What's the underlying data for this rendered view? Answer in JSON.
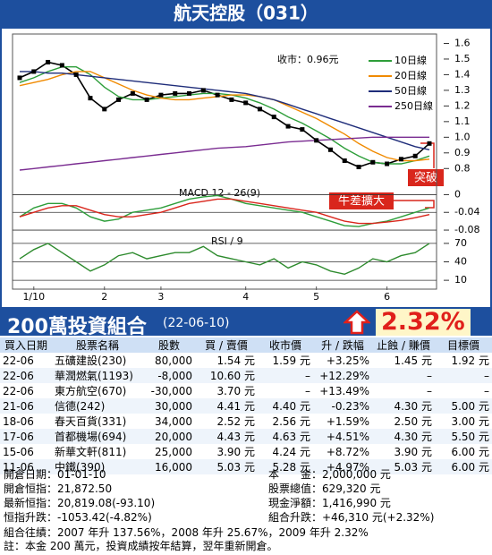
{
  "header": {
    "title": "航天控股（031）"
  },
  "chart_data": [
    {
      "type": "line",
      "categories": [
        null,
        "1/10",
        null,
        null,
        null,
        null,
        "2",
        null,
        null,
        null,
        "3",
        null,
        null,
        null,
        null,
        null,
        "4",
        null,
        null,
        null,
        null,
        "5",
        null,
        null,
        null,
        null,
        "6",
        null,
        null,
        null
      ],
      "values": [
        1.38,
        1.42,
        1.48,
        1.46,
        1.4,
        1.25,
        1.18,
        1.24,
        1.28,
        1.24,
        1.27,
        1.28,
        1.28,
        1.3,
        1.27,
        1.24,
        1.22,
        1.18,
        1.13,
        1.07,
        1.05,
        0.98,
        0.92,
        0.85,
        0.81,
        0.84,
        0.83,
        0.86,
        0.88,
        0.96
      ],
      "color": "#000000",
      "series": [
        {
          "name": "10日線",
          "color": "#2e9e3a",
          "values": [
            1.35,
            1.38,
            1.42,
            1.45,
            1.45,
            1.4,
            1.32,
            1.26,
            1.24,
            1.24,
            1.25,
            1.26,
            1.27,
            1.28,
            1.28,
            1.27,
            1.25,
            1.22,
            1.18,
            1.13,
            1.09,
            1.04,
            0.99,
            0.93,
            0.88,
            0.84,
            0.83,
            0.83,
            0.85,
            0.88
          ]
        },
        {
          "name": "20日線",
          "color": "#f08a00",
          "values": [
            1.33,
            1.35,
            1.37,
            1.4,
            1.42,
            1.42,
            1.38,
            1.34,
            1.3,
            1.27,
            1.25,
            1.24,
            1.24,
            1.25,
            1.26,
            1.27,
            1.27,
            1.26,
            1.24,
            1.2,
            1.16,
            1.12,
            1.07,
            1.02,
            0.96,
            0.91,
            0.87,
            0.85,
            0.85,
            0.86
          ]
        },
        {
          "name": "50日線",
          "color": "#1f2d7a",
          "values": [
            1.42,
            1.42,
            1.41,
            1.41,
            1.4,
            1.39,
            1.38,
            1.37,
            1.36,
            1.35,
            1.34,
            1.33,
            1.32,
            1.31,
            1.3,
            1.29,
            1.28,
            1.26,
            1.24,
            1.21,
            1.18,
            1.15,
            1.12,
            1.09,
            1.06,
            1.03,
            1.0,
            0.97,
            0.94,
            0.92
          ]
        },
        {
          "name": "250日線",
          "color": "#7a2c91",
          "values": [
            0.79,
            0.8,
            0.81,
            0.82,
            0.83,
            0.84,
            0.85,
            0.86,
            0.87,
            0.88,
            0.89,
            0.9,
            0.91,
            0.92,
            0.93,
            0.935,
            0.94,
            0.95,
            0.96,
            0.97,
            0.975,
            0.98,
            0.985,
            0.99,
            0.995,
            1.0,
            1.0,
            1.0,
            1.0,
            1.0
          ]
        }
      ],
      "ylim": [
        0.75,
        1.62
      ],
      "yticks": [
        1.6,
        1.5,
        1.4,
        1.3,
        1.2,
        1.1,
        {
          "value": 1,
          "label": "1.0"
        },
        0.9,
        0.8
      ],
      "grid": false,
      "legend": "top-right",
      "annotations": {
        "close": "收市：0.96元",
        "signal": "突破"
      }
    },
    {
      "type": "line",
      "title": "MACD 12 - 26(9)",
      "series": [
        {
          "color": "#2e9e3a",
          "values": [
            -0.05,
            -0.03,
            -0.02,
            -0.02,
            -0.03,
            -0.05,
            -0.06,
            -0.055,
            -0.04,
            -0.035,
            -0.03,
            -0.02,
            -0.01,
            -0.005,
            -0.002,
            -0.01,
            -0.02,
            -0.025,
            -0.03,
            -0.035,
            -0.04,
            -0.05,
            -0.06,
            -0.07,
            -0.072,
            -0.065,
            -0.06,
            -0.05,
            -0.04,
            -0.03
          ]
        },
        {
          "color": "#d9261c",
          "values": [
            -0.05,
            -0.04,
            -0.03,
            -0.025,
            -0.025,
            -0.035,
            -0.045,
            -0.05,
            -0.05,
            -0.045,
            -0.04,
            -0.03,
            -0.02,
            -0.015,
            -0.01,
            -0.01,
            -0.015,
            -0.02,
            -0.025,
            -0.03,
            -0.035,
            -0.04,
            -0.05,
            -0.06,
            -0.065,
            -0.065,
            -0.062,
            -0.058,
            -0.052,
            -0.045
          ]
        }
      ],
      "ylim": [
        -0.09,
        0.015
      ],
      "yticks": [
        0,
        -0.04,
        -0.08
      ],
      "grid": true,
      "annotations": {
        "signal": "牛差擴大"
      }
    },
    {
      "type": "line",
      "title": "RSI / 9",
      "series": [
        {
          "color": "#2e8b2e",
          "values": [
            45,
            60,
            70,
            55,
            40,
            25,
            35,
            50,
            55,
            45,
            50,
            55,
            55,
            65,
            50,
            45,
            40,
            35,
            45,
            30,
            40,
            35,
            25,
            20,
            30,
            45,
            40,
            50,
            55,
            70
          ]
        }
      ],
      "ylim": [
        0,
        80
      ],
      "yticks": [
        70,
        40,
        10
      ],
      "grid": true
    }
  ],
  "portfolio": {
    "title": "200萬投資組合",
    "date": "(22-06-10)",
    "change": "2.32%",
    "columns": [
      "買入日期",
      "股票名稱",
      "股數",
      "買 / 賣價",
      "收市價",
      "升 / 跌幅",
      "止蝕 / 賺價",
      "目標價"
    ],
    "rows": [
      [
        "22-06",
        "五礦建設(230)",
        "80,000",
        "1.54 元",
        "1.59 元",
        "+3.25%",
        "1.45 元",
        "1.92 元"
      ],
      [
        "22-06",
        "華潤燃氣(1193)",
        "-8,000",
        "10.60 元",
        "–",
        "+12.29%",
        "–",
        "–"
      ],
      [
        "22-06",
        "東方航空(670)",
        "-30,000",
        "3.70 元",
        "–",
        "+13.49%",
        "–",
        "–"
      ],
      [
        "21-06",
        "信德(242)",
        "30,000",
        "4.41 元",
        "4.40 元",
        "-0.23%",
        "4.30 元",
        "5.00 元"
      ],
      [
        "18-06",
        "春天百貨(331)",
        "34,000",
        "2.52 元",
        "2.56 元",
        "+1.59%",
        "2.50 元",
        "3.00 元"
      ],
      [
        "17-06",
        "首都機場(694)",
        "20,000",
        "4.43 元",
        "4.63 元",
        "+4.51%",
        "4.30 元",
        "5.50 元"
      ],
      [
        "15-06",
        "新華文軒(811)",
        "25,000",
        "3.90 元",
        "4.24 元",
        "+8.72%",
        "3.90 元",
        "6.00 元"
      ],
      [
        "11-06",
        "中鐵(390)",
        "16,000",
        "5.03 元",
        "5.28 元",
        "+4.97%",
        "5.03 元",
        "6.00 元"
      ]
    ],
    "summary_left": [
      "開倉日期：01-01-10",
      "開倉恒指：21,872.50",
      "最新恒指：20,819.08(-93.10)",
      "恒指升跌：-1053.42(-4.82%)"
    ],
    "summary_right": [
      "本　　金：2,000,000 元",
      "股票總值：629,320 元",
      "現金淨額：1,416,990 元",
      "組合升跌：+46,310 元(+2.32%)"
    ],
    "footer": [
      "組合往績：2007 年升 137.56%，2008 年升 25.67%，2009 年升 2.32%",
      "註：本金 200 萬元，投資成績按年結算，翌年重新開倉。"
    ]
  }
}
